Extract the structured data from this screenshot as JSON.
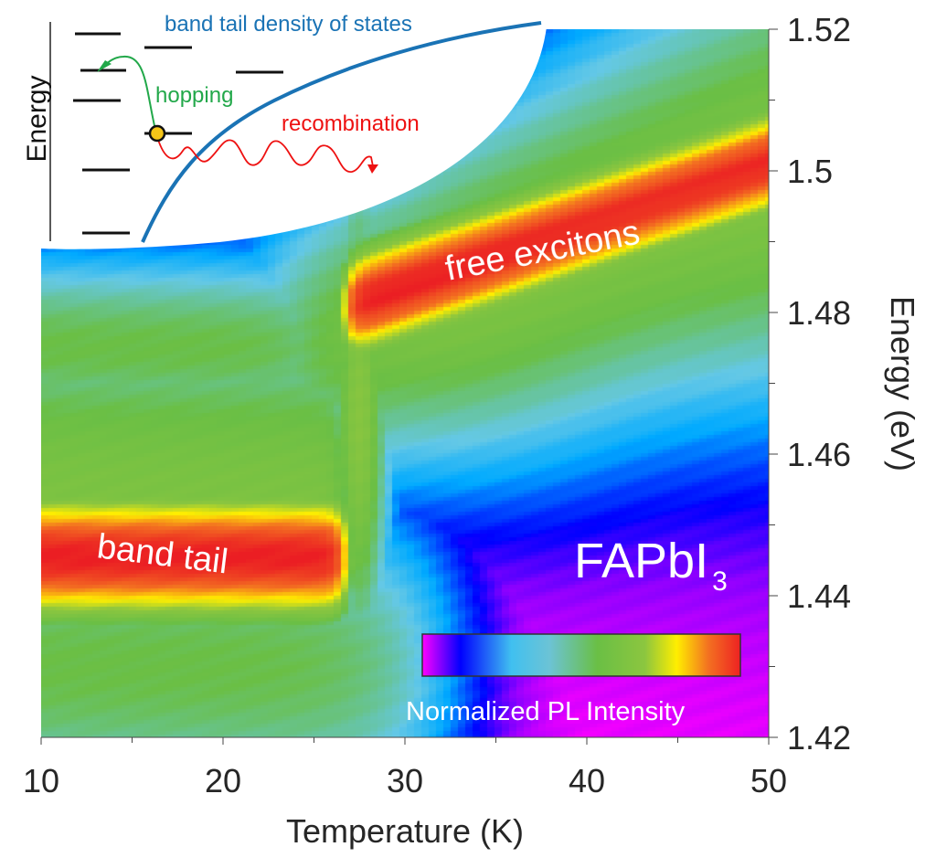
{
  "chart_data": {
    "type": "heatmap",
    "title": "",
    "xlabel": "Temperature (K)",
    "ylabel": "Energy (eV)",
    "xlim": [
      10,
      50
    ],
    "ylim": [
      1.42,
      1.52
    ],
    "x_ticks": [
      10,
      20,
      30,
      40,
      50
    ],
    "x_tick_labels": [
      "10",
      "20",
      "30",
      "40",
      "50"
    ],
    "x_minor_ticks": [
      15,
      25,
      35,
      45
    ],
    "y_ticks": [
      1.42,
      1.44,
      1.46,
      1.48,
      1.5,
      1.52
    ],
    "y_tick_labels": [
      "1.42",
      "1.44",
      "1.46",
      "1.48",
      "1.5",
      "1.52"
    ],
    "y_minor_ticks": [
      1.43,
      1.45,
      1.47,
      1.49,
      1.51
    ],
    "y_axis_side": "right",
    "grid": false,
    "colorbar": {
      "label": "Normalized PL Intensity",
      "placement": "bottom-right-inset",
      "range": [
        0,
        1
      ],
      "colors": [
        "#ff00ff",
        "#0000ff",
        "#40c0f0",
        "#6abf45",
        "#ffee00",
        "#ee2222"
      ]
    },
    "features": [
      {
        "name": "band tail",
        "energy_center_eV": 1.445,
        "T_range_K": [
          10,
          27
        ],
        "peak_intensity": 1.0
      },
      {
        "name": "free excitons",
        "energy_at_T27_eV": 1.482,
        "energy_at_T50_eV": 1.501,
        "T_range_K": [
          26,
          50
        ],
        "peak_intensity": 1.0
      },
      {
        "name": "transition",
        "T_K": 27
      }
    ],
    "annotations": {
      "material_main": "FAPbI",
      "material_sub": "3",
      "band_tail_label": "band tail",
      "free_excitons_label": "free excitons"
    },
    "inset": {
      "ylabel": "Energy",
      "dos_label": "band tail density of states",
      "hopping_label": "hopping",
      "recombination_label": "recombination",
      "dos_color": "#1a73b5",
      "hopping_color": "#22a84a",
      "recombination_color": "#ee1111",
      "carrier_color": "#f5c518"
    }
  }
}
